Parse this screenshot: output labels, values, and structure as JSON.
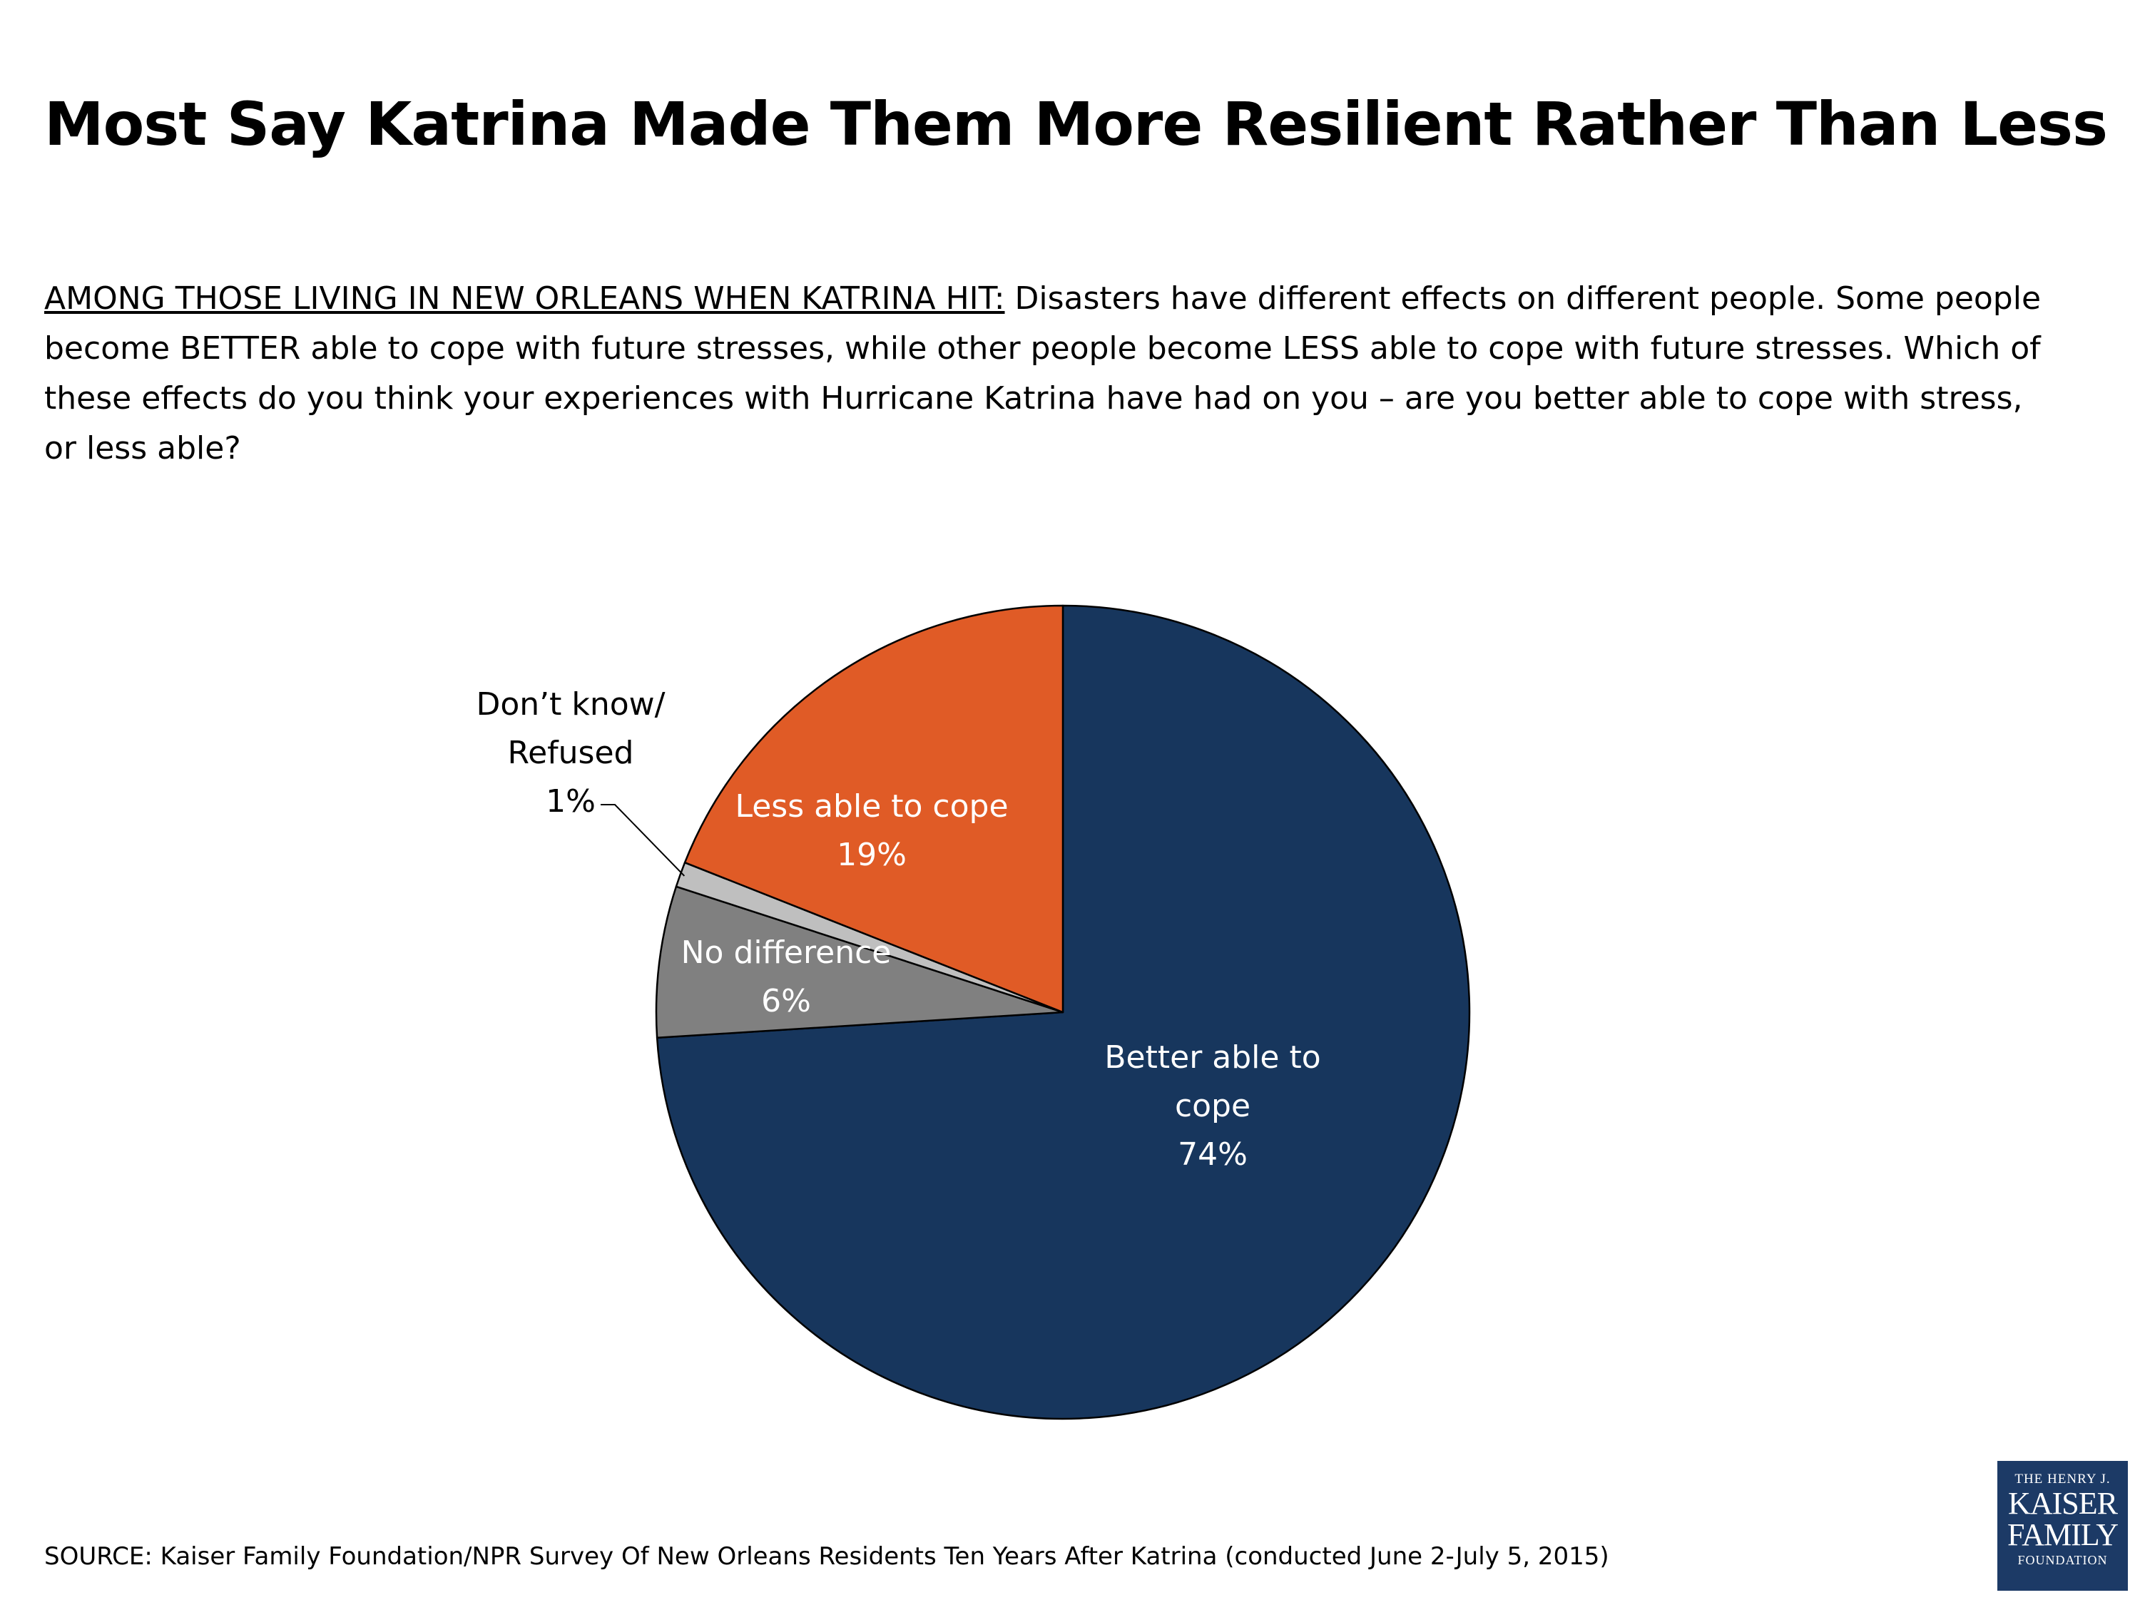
{
  "header": {
    "title": "Most Say Katrina Made Them More Resilient Rather Than Less"
  },
  "question": {
    "lead": "AMONG THOSE LIVING IN NEW ORLEANS WHEN KATRINA HIT:",
    "text": " Disasters have different effects on different people. Some people become BETTER able to cope with future stresses, while other people become LESS able to cope with future stresses. Which of these effects do you think your experiences with Hurricane Katrina have had on you – are you better able to cope with stress, or less able?"
  },
  "chart_data": {
    "type": "pie",
    "slices": [
      {
        "label_lines": [
          "Better able to",
          "cope"
        ],
        "value_label": "74%",
        "value": 74,
        "color": "#17365d"
      },
      {
        "label_lines": [
          "No difference"
        ],
        "value_label": "6%",
        "value": 6,
        "color": "#808080"
      },
      {
        "label_lines": [
          "Don’t know/",
          "Refused"
        ],
        "value_label": "1%",
        "value": 1,
        "color": "#bfbfbf"
      },
      {
        "label_lines": [
          "Less able to cope"
        ],
        "value_label": "19%",
        "value": 19,
        "color": "#e05b26"
      }
    ],
    "start": "12 o'clock",
    "direction": "clockwise"
  },
  "footer": {
    "source": "SOURCE: Kaiser Family Foundation/NPR Survey Of New Orleans Residents Ten Years After Katrina (conducted June 2-July 5, 2015)"
  },
  "logo": {
    "line1": "THE HENRY J.",
    "line2": "KAISER",
    "line3": "FAMILY",
    "line4": "FOUNDATION"
  }
}
